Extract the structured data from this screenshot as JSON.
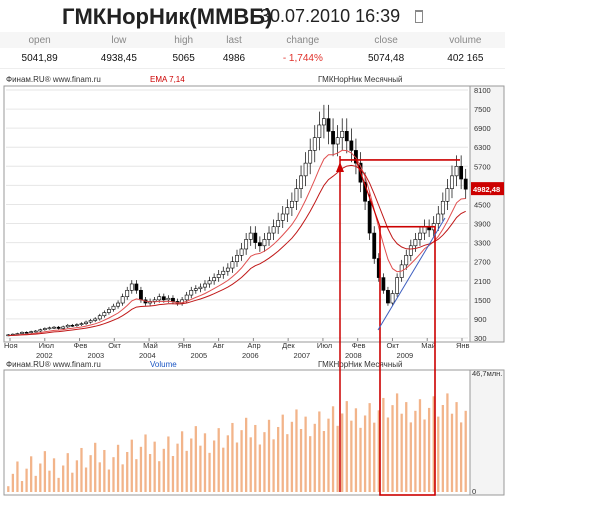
{
  "header": {
    "ticker": "ГМКНорНик(ММВБ)",
    "datetime": "30.07.2010 16:39"
  },
  "stats": {
    "headers": [
      "open",
      "low",
      "high",
      "last",
      "change",
      "close",
      "volume"
    ],
    "values": [
      "5041,89",
      "4938,45",
      "5065",
      "4986",
      "- 1,744%",
      "5074,48",
      "402 165"
    ]
  },
  "chart_data": [
    {
      "type": "candlestick",
      "source_label": "Финам.RU® www.finam.ru",
      "indicator_label": "EMA 7,14",
      "title": "ГМКНорНик Месячный",
      "y_ticks": [
        8100,
        7500,
        6900,
        6300,
        5700,
        5100,
        4500,
        3900,
        3300,
        2700,
        2100,
        1500,
        900,
        300
      ],
      "ylim": [
        300,
        8100
      ],
      "last_price_label": "4982,48",
      "last_price": 4982.48,
      "x_top_labels": [
        "Ноя",
        "Июл",
        "Фев",
        "Окт",
        "Май",
        "Янв",
        "Авг",
        "Апр",
        "Дек",
        "Июл",
        "Фев",
        "Окт",
        "Май",
        "Янв"
      ],
      "x_year_labels": [
        "2002",
        "2003",
        "2004",
        "2005",
        "2006",
        "2007",
        "2008",
        "2009"
      ],
      "resistance_level": 5900,
      "box": {
        "y_from": 1200,
        "y_to": 3800
      },
      "series_close": [
        400,
        420,
        440,
        480,
        470,
        500,
        520,
        560,
        600,
        620,
        640,
        600,
        650,
        700,
        690,
        720,
        750,
        800,
        850,
        900,
        1000,
        1100,
        1200,
        1300,
        1400,
        1600,
        1800,
        2000,
        1800,
        1500,
        1400,
        1450,
        1500,
        1600,
        1500,
        1550,
        1450,
        1400,
        1500,
        1650,
        1800,
        1850,
        1900,
        2000,
        2100,
        2200,
        2300,
        2400,
        2500,
        2700,
        2900,
        3100,
        3400,
        3600,
        3300,
        3200,
        3400,
        3600,
        3800,
        4000,
        4200,
        4400,
        4600,
        5000,
        5400,
        5800,
        6200,
        6600,
        7000,
        7200,
        6800,
        6400,
        6600,
        6800,
        6500,
        6200,
        5800,
        5200,
        4600,
        3600,
        2800,
        2200,
        1800,
        1400,
        1700,
        2200,
        2600,
        2900,
        3200,
        3400,
        3600,
        3800,
        3700,
        3900,
        4200,
        4600,
        5000,
        5400,
        5700,
        5300,
        4980
      ],
      "volume_axis_label": "46,7млн.",
      "volume_label": "Volume",
      "volume_axis_zero": "0"
    }
  ]
}
